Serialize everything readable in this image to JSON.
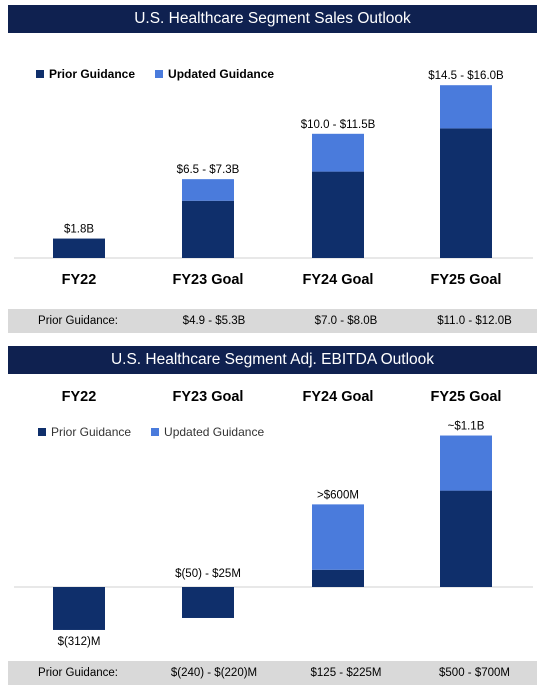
{
  "chart_data": [
    {
      "type": "bar",
      "title": "U.S. Healthcare Segment Sales Outlook",
      "categories": [
        "FY22",
        "FY23 Goal",
        "FY24 Goal",
        "FY25 Goal"
      ],
      "series": [
        {
          "name": "Prior Guidance",
          "values": [
            1.8,
            5.3,
            8.0,
            12.0
          ]
        },
        {
          "name": "Updated Guidance",
          "values": [
            0,
            2.0,
            3.5,
            4.0
          ]
        }
      ],
      "value_labels": [
        "$1.8B",
        "$6.5 - $7.3B",
        "$10.0 - $11.5B",
        "$14.5 - $16.0B"
      ],
      "ylim": [
        0,
        16
      ],
      "legend": [
        "Prior Guidance",
        "Updated Guidance"
      ],
      "prior_guidance_label": "Prior Guidance:",
      "prior_guidance_row": [
        "$4.9 - $5.3B",
        "$7.0 - $8.0B",
        "$11.0 - $12.0B"
      ]
    },
    {
      "type": "bar",
      "title": "U.S. Healthcare Segment Adj. EBITDA Outlook",
      "categories": [
        "FY22",
        "FY23 Goal",
        "FY24 Goal",
        "FY25 Goal"
      ],
      "series": [
        {
          "name": "Prior Guidance",
          "values": [
            -312,
            -225,
            125,
            700
          ]
        },
        {
          "name": "Updated Guidance",
          "values": [
            0,
            0,
            475,
            400
          ]
        }
      ],
      "value_labels": [
        "$(312)M",
        "$(50) - $25M",
        ">$600M",
        "~$1.1B"
      ],
      "ylim": [
        -400,
        1100
      ],
      "legend": [
        "Prior Guidance",
        "Updated Guidance"
      ],
      "prior_guidance_label": "Prior Guidance:",
      "prior_guidance_row": [
        "$(240) - $(220)M",
        "$125 - $225M",
        "$500 - $700M"
      ]
    }
  ],
  "colors": {
    "prior": "#0f2f6b",
    "updated": "#4a7bdc",
    "banner": "#0f2150",
    "band": "#d9d9d9"
  }
}
